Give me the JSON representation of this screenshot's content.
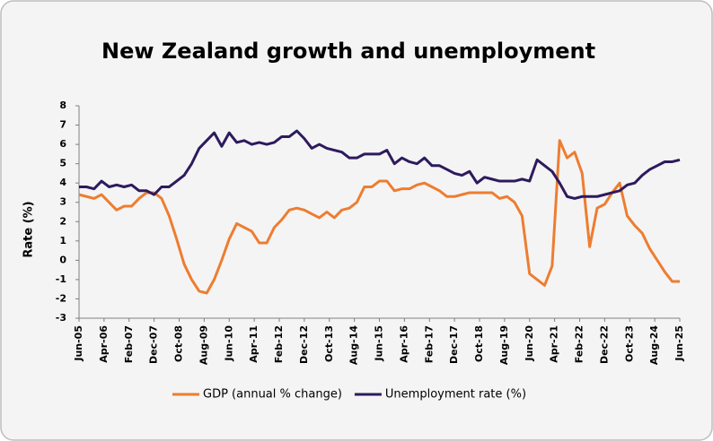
{
  "chart_data": {
    "type": "line",
    "title": "New Zealand growth and unemployment",
    "y_label": "Rate (%)",
    "x": [
      "2005-06",
      "2005-09",
      "2005-12",
      "2006-03",
      "2006-06",
      "2006-09",
      "2006-12",
      "2007-03",
      "2007-06",
      "2007-09",
      "2007-12",
      "2008-03",
      "2008-06",
      "2008-09",
      "2008-12",
      "2009-03",
      "2009-06",
      "2009-09",
      "2009-12",
      "2010-03",
      "2010-06",
      "2010-09",
      "2010-12",
      "2011-03",
      "2011-06",
      "2011-09",
      "2011-12",
      "2012-03",
      "2012-06",
      "2012-09",
      "2012-12",
      "2013-03",
      "2013-06",
      "2013-09",
      "2013-12",
      "2014-03",
      "2014-06",
      "2014-09",
      "2014-12",
      "2015-03",
      "2015-06",
      "2015-09",
      "2015-12",
      "2016-03",
      "2016-06",
      "2016-09",
      "2016-12",
      "2017-03",
      "2017-06",
      "2017-09",
      "2017-12",
      "2018-03",
      "2018-06",
      "2018-09",
      "2018-12",
      "2019-03",
      "2019-06",
      "2019-09",
      "2019-12",
      "2020-03",
      "2020-06",
      "2020-09",
      "2020-12",
      "2021-03",
      "2021-06",
      "2021-09",
      "2021-12",
      "2022-03",
      "2022-06",
      "2022-09",
      "2022-12",
      "2023-03",
      "2023-06",
      "2023-09",
      "2023-12",
      "2024-03",
      "2024-06",
      "2024-09",
      "2024-12",
      "2025-03",
      "2025-06"
    ],
    "series": [
      {
        "name": "GDP (annual % change)",
        "color": "#ed7d31",
        "values": [
          3.4,
          3.3,
          3.2,
          3.4,
          3.0,
          2.6,
          2.8,
          2.8,
          3.2,
          3.5,
          3.5,
          3.2,
          2.3,
          1.1,
          -0.2,
          -1.0,
          -1.6,
          -1.7,
          -1.0,
          0.0,
          1.1,
          1.9,
          1.7,
          1.5,
          0.9,
          0.9,
          1.7,
          2.1,
          2.6,
          2.7,
          2.6,
          2.4,
          2.2,
          2.5,
          2.2,
          2.6,
          2.7,
          3.0,
          3.8,
          3.8,
          4.1,
          4.1,
          3.6,
          3.7,
          3.7,
          3.9,
          4.0,
          3.8,
          3.6,
          3.3,
          3.3,
          3.4,
          3.5,
          3.5,
          3.5,
          3.5,
          3.2,
          3.3,
          3.0,
          2.3,
          -0.7,
          -1.0,
          -1.3,
          -0.3,
          6.2,
          5.3,
          5.6,
          4.5,
          0.7,
          2.7,
          2.9,
          3.5,
          4.0,
          2.3,
          1.8,
          1.4,
          0.6,
          0.0,
          -0.6,
          -1.1,
          -1.1
        ]
      },
      {
        "name": "Unemployment rate (%)",
        "color": "#2e1a5e",
        "values": [
          3.8,
          3.8,
          3.7,
          4.1,
          3.8,
          3.9,
          3.8,
          3.9,
          3.6,
          3.6,
          3.4,
          3.8,
          3.8,
          4.1,
          4.4,
          5.0,
          5.8,
          6.2,
          6.6,
          5.9,
          6.6,
          6.1,
          6.2,
          6.0,
          6.1,
          6.0,
          6.1,
          6.4,
          6.4,
          6.7,
          6.3,
          5.8,
          6.0,
          5.8,
          5.7,
          5.6,
          5.3,
          5.3,
          5.5,
          5.5,
          5.5,
          5.7,
          5.0,
          5.3,
          5.1,
          5.0,
          5.3,
          4.9,
          4.9,
          4.7,
          4.5,
          4.4,
          4.6,
          4.0,
          4.3,
          4.2,
          4.1,
          4.1,
          4.1,
          4.2,
          4.1,
          5.2,
          4.9,
          4.6,
          4.0,
          3.3,
          3.2,
          3.3,
          3.3,
          3.3,
          3.4,
          3.5,
          3.6,
          3.9,
          4.0,
          4.4,
          4.7,
          4.9,
          5.1,
          5.1,
          5.2
        ]
      }
    ],
    "xlim": [
      "2005-06",
      "2025-06"
    ],
    "xticks": [
      {
        "value": "2005-06",
        "label": "Jun-05"
      },
      {
        "value": "2006-04",
        "label": "Apr-06"
      },
      {
        "value": "2007-02",
        "label": "Feb-07"
      },
      {
        "value": "2007-12",
        "label": "Dec-07"
      },
      {
        "value": "2008-10",
        "label": "Oct-08"
      },
      {
        "value": "2009-08",
        "label": "Aug-09"
      },
      {
        "value": "2010-06",
        "label": "Jun-10"
      },
      {
        "value": "2011-04",
        "label": "Apr-11"
      },
      {
        "value": "2012-02",
        "label": "Feb-12"
      },
      {
        "value": "2012-12",
        "label": "Dec-12"
      },
      {
        "value": "2013-10",
        "label": "Oct-13"
      },
      {
        "value": "2014-08",
        "label": "Aug-14"
      },
      {
        "value": "2015-06",
        "label": "Jun-15"
      },
      {
        "value": "2016-04",
        "label": "Apr-16"
      },
      {
        "value": "2017-02",
        "label": "Feb-17"
      },
      {
        "value": "2017-12",
        "label": "Dec-17"
      },
      {
        "value": "2018-10",
        "label": "Oct-18"
      },
      {
        "value": "2019-08",
        "label": "Aug-19"
      },
      {
        "value": "2020-06",
        "label": "Jun-20"
      },
      {
        "value": "2021-04",
        "label": "Apr-21"
      },
      {
        "value": "2022-02",
        "label": "Feb-22"
      },
      {
        "value": "2022-12",
        "label": "Dec-22"
      },
      {
        "value": "2023-10",
        "label": "Oct-23"
      },
      {
        "value": "2024-08",
        "label": "Aug-24"
      },
      {
        "value": "2025-06",
        "label": "Jun-25"
      }
    ],
    "ylim": [
      -3,
      8
    ],
    "yticks": [
      -3,
      -2,
      -1,
      0,
      1,
      2,
      3,
      4,
      5,
      6,
      7,
      8
    ],
    "grid": false,
    "legend": "bottom"
  }
}
